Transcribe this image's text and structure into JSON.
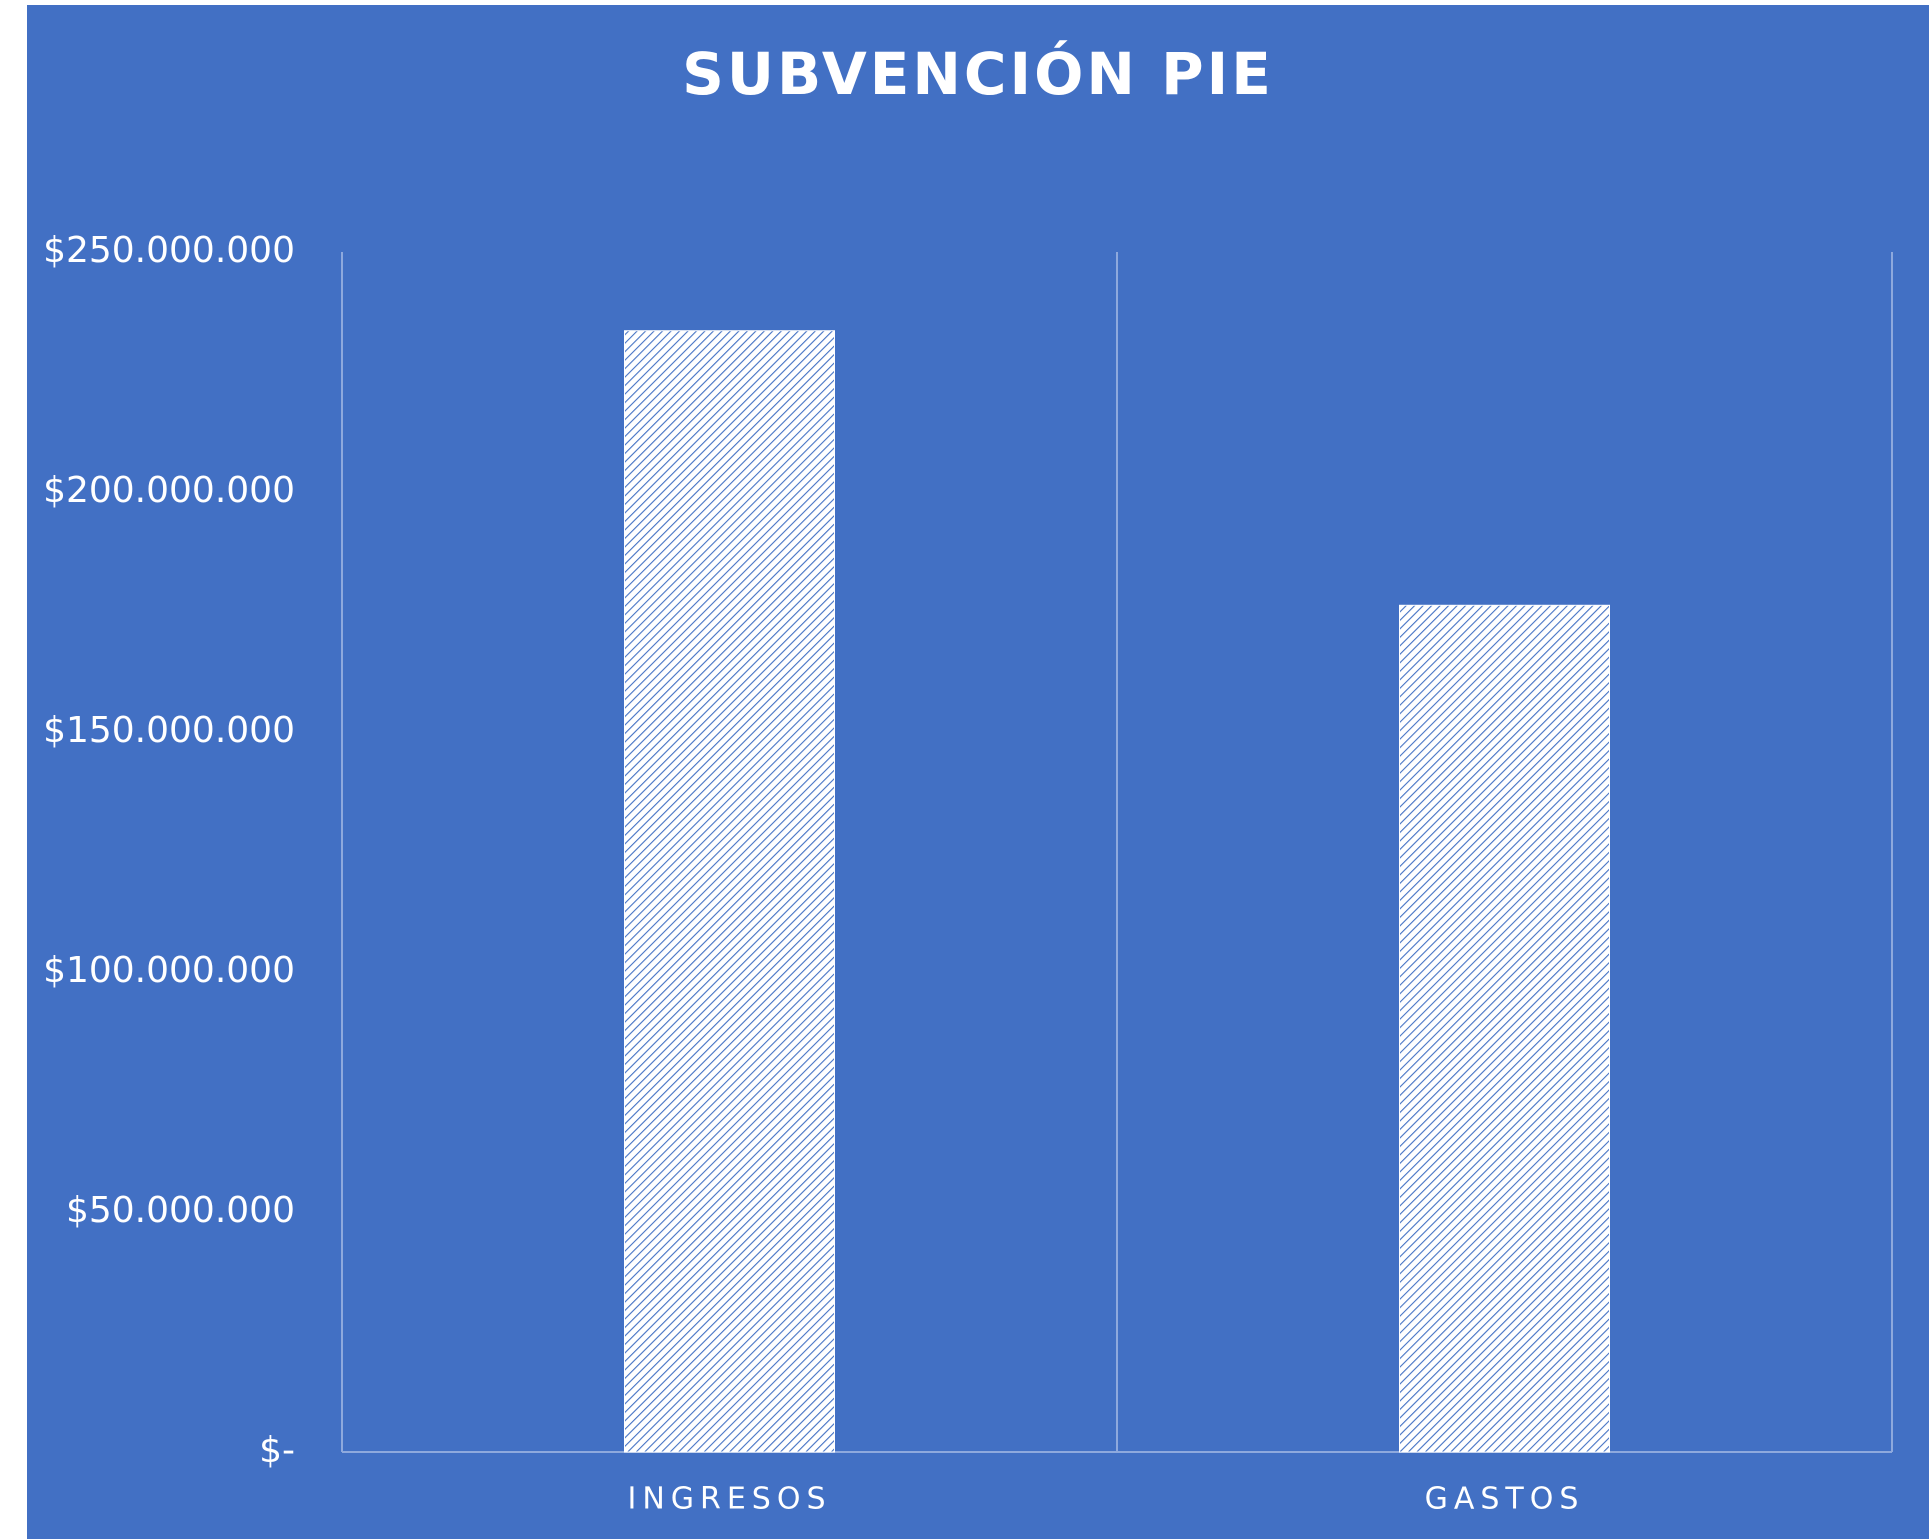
{
  "chart_data": {
    "type": "bar",
    "title": "SUBVENCIÓN PIE",
    "categories": [
      "INGRESOS",
      "GASTOS"
    ],
    "values": [
      233600000,
      176400000
    ],
    "color": "#ffffff",
    "ylim": [
      0,
      250000000
    ],
    "yticks": [
      {
        "value": 0,
        "label": "$-"
      },
      {
        "value": 50000000,
        "label": "$50.000.000"
      },
      {
        "value": 100000000,
        "label": "$100.000.000"
      },
      {
        "value": 150000000,
        "label": "$150.000.000"
      },
      {
        "value": 200000000,
        "label": "$200.000.000"
      },
      {
        "value": 250000000,
        "label": "$250.000.000"
      }
    ],
    "grid": false
  }
}
